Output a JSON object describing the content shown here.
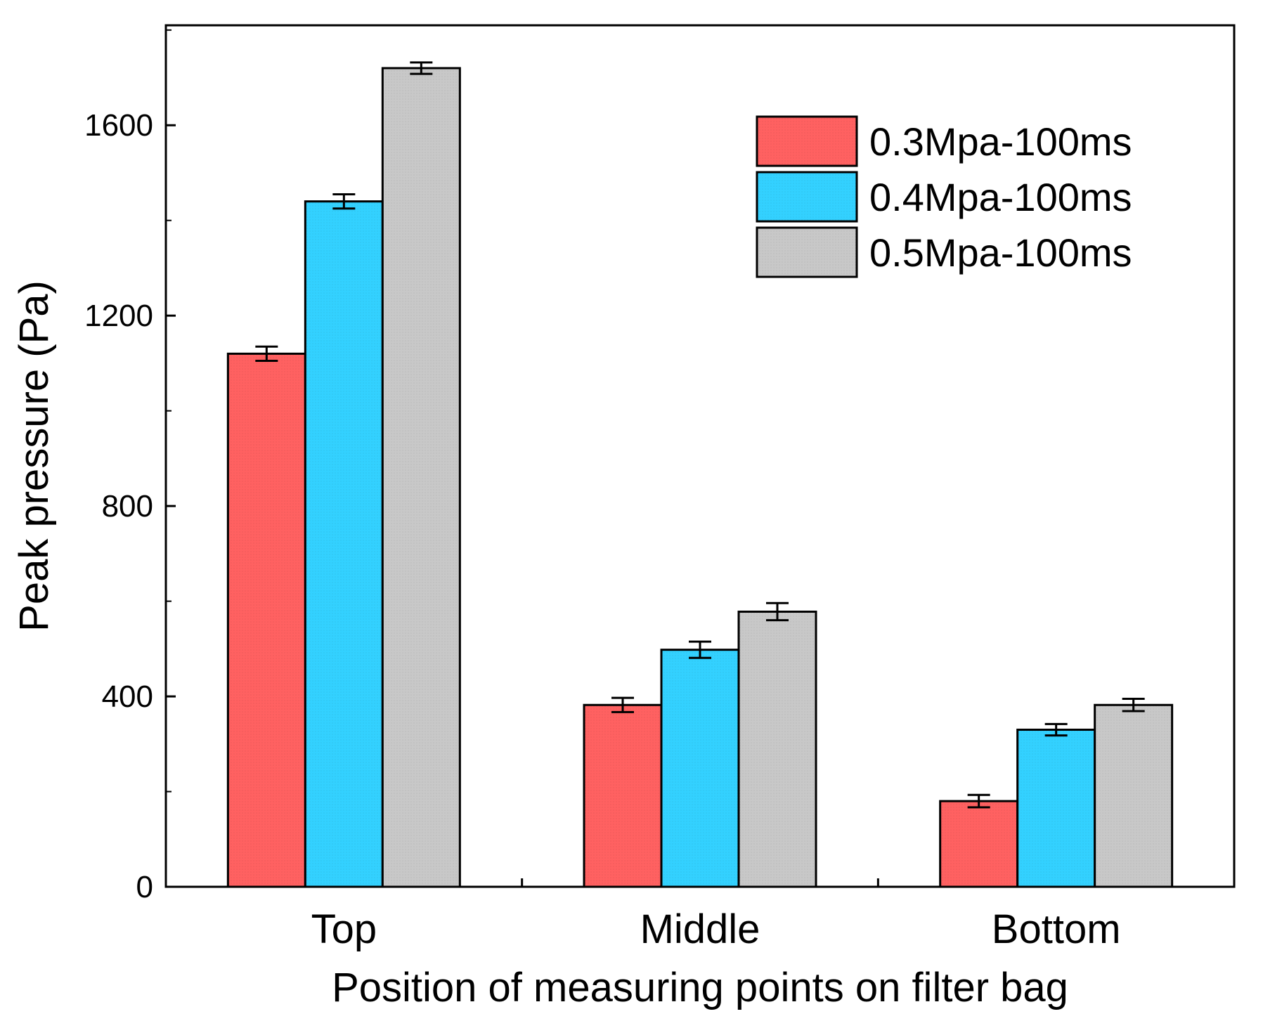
{
  "chart_data": {
    "type": "bar",
    "title": "",
    "xlabel": "Position of measuring points on filter bag",
    "ylabel": "Peak pressure (Pa)",
    "ylim": [
      0,
      1810
    ],
    "yticks": [
      0,
      400,
      800,
      1200,
      1600
    ],
    "ytick_labels": [
      "0",
      "400",
      "800",
      "1200",
      "1600"
    ],
    "categories": [
      "Top",
      "Middle",
      "Bottom"
    ],
    "series": [
      {
        "name": "0.3Mpa-100ms",
        "color": "#ff6161",
        "values": [
          1120,
          382,
          180
        ],
        "errors": [
          15,
          15,
          13
        ]
      },
      {
        "name": "0.4Mpa-100ms",
        "color": "#33d1ff",
        "values": [
          1440,
          498,
          330
        ],
        "errors": [
          15,
          17,
          12
        ]
      },
      {
        "name": "0.5Mpa-100ms",
        "color": "#c8c8c8",
        "values": [
          1720,
          578,
          382
        ],
        "errors": [
          12,
          18,
          13
        ]
      }
    ],
    "grid": false,
    "legend_position": "top-right",
    "error_bars": true
  }
}
